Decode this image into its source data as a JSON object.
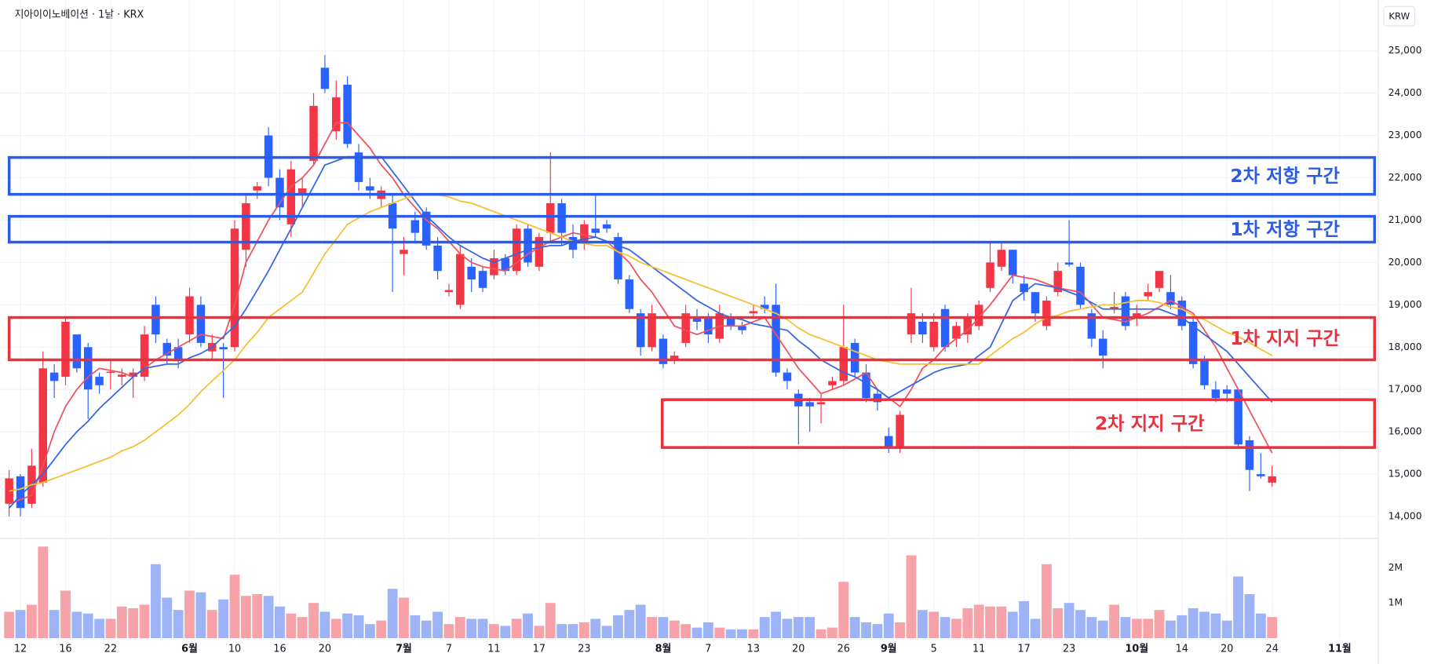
{
  "chart_data": {
    "type": "candlestick",
    "title": "지아이이노베이션 · 1날 · KRX",
    "currency_label": "KRW",
    "up_color": "#f23645",
    "down_color": "#2962ff",
    "grid": true,
    "categories": [
      null,
      "12",
      null,
      null,
      null,
      "16",
      null,
      null,
      null,
      "22",
      null,
      null,
      null,
      null,
      null,
      null,
      "6월",
      null,
      null,
      null,
      "10",
      null,
      null,
      null,
      "16",
      null,
      null,
      null,
      "20",
      null,
      null,
      null,
      null,
      null,
      null,
      "7월",
      null,
      null,
      null,
      "7",
      null,
      null,
      null,
      "11",
      null,
      null,
      null,
      "17",
      null,
      null,
      null,
      "23",
      null,
      null,
      null,
      null,
      null,
      null,
      "8월",
      null,
      null,
      null,
      "7",
      null,
      null,
      null,
      "13",
      null,
      null,
      null,
      "20",
      null,
      null,
      null,
      "26",
      null,
      null,
      null,
      "9월",
      null,
      null,
      null,
      "5",
      null,
      null,
      null,
      "11",
      null,
      null,
      null,
      "17",
      null,
      null,
      null,
      "23",
      null,
      null,
      null,
      null,
      null,
      "10월",
      null,
      null,
      null,
      "14",
      null,
      null,
      null,
      "20",
      null,
      null,
      null,
      "24",
      null,
      null,
      null,
      null,
      null,
      "11월"
    ],
    "open": [
      14300,
      14950,
      14300,
      14800,
      17400,
      17300,
      18300,
      18000,
      17300,
      17400,
      17300,
      17300,
      17300,
      19000,
      18100,
      18000,
      18300,
      19000,
      17900,
      18000,
      18000,
      20300,
      21700,
      23000,
      22000,
      20900,
      21600,
      22400,
      24600,
      23100,
      24200,
      22600,
      21800,
      21500,
      21400,
      20200,
      21000,
      21200,
      20400,
      19300,
      19000,
      19900,
      19800,
      19700,
      20100,
      19800,
      20800,
      19900,
      20700,
      21400,
      20600,
      20500,
      20800,
      20900,
      20600,
      19600,
      18800,
      18000,
      18200,
      17700,
      18100,
      18700,
      18700,
      18200,
      18700,
      18500,
      18800,
      19000,
      19000,
      17400,
      16900,
      16700,
      16650,
      17100,
      17200,
      18100,
      17400,
      16900,
      15900,
      15600,
      18300,
      18600,
      18000,
      18900,
      18200,
      18300,
      18500,
      19400,
      19900,
      20300,
      19500,
      19300,
      18500,
      19300,
      20000,
      19900,
      18800,
      18200,
      18900,
      19200,
      18700,
      19200,
      19400,
      19300,
      19100,
      18600,
      17700,
      17000,
      17000,
      17000,
      15800,
      15000,
      14800,
      null,
      null,
      null,
      null,
      null,
      null
    ],
    "high": [
      15100,
      15000,
      15600,
      17900,
      17600,
      18700,
      18300,
      18100,
      17400,
      17700,
      17500,
      17500,
      18500,
      19200,
      18200,
      18200,
      19400,
      19200,
      18300,
      18100,
      21000,
      21600,
      21900,
      23200,
      22200,
      22400,
      22000,
      24000,
      24900,
      24300,
      24400,
      22800,
      22000,
      21800,
      21600,
      20600,
      21200,
      21300,
      20600,
      19500,
      20400,
      20100,
      19900,
      20300,
      20200,
      20900,
      20900,
      20700,
      22600,
      21500,
      20900,
      21000,
      21600,
      21000,
      20700,
      19700,
      18900,
      19000,
      18300,
      17900,
      19000,
      18900,
      18800,
      19000,
      18800,
      18600,
      19000,
      19200,
      19500,
      17500,
      17000,
      16800,
      16900,
      17300,
      19000,
      18200,
      17600,
      17000,
      16100,
      16500,
      19400,
      18800,
      18800,
      19000,
      18600,
      18800,
      19100,
      20500,
      20500,
      20300,
      19700,
      19300,
      19200,
      20000,
      21000,
      20000,
      18900,
      18400,
      19300,
      19300,
      19000,
      19500,
      19800,
      19700,
      19200,
      18700,
      17800,
      17200,
      17100,
      17000,
      15900,
      15500,
      15200,
      null,
      null,
      null,
      null,
      null,
      null
    ],
    "low": [
      14000,
      14000,
      14200,
      14700,
      16800,
      17100,
      17400,
      16300,
      16900,
      17000,
      17100,
      16800,
      17200,
      18100,
      17600,
      17500,
      18100,
      18000,
      17700,
      16800,
      17900,
      19900,
      21500,
      21800,
      21000,
      20600,
      21300,
      22300,
      24000,
      22900,
      22700,
      21700,
      21500,
      21300,
      19300,
      19700,
      20500,
      20300,
      19600,
      19200,
      18900,
      19300,
      19300,
      19600,
      19700,
      19700,
      19900,
      19800,
      20500,
      20400,
      20100,
      20300,
      20600,
      20700,
      19500,
      18800,
      17800,
      17900,
      17500,
      17600,
      18000,
      18400,
      18100,
      18100,
      18400,
      18300,
      18700,
      18800,
      17300,
      17000,
      15700,
      16000,
      16200,
      17000,
      17100,
      17300,
      16700,
      16500,
      15500,
      15500,
      18100,
      18100,
      17900,
      17900,
      18000,
      18100,
      18400,
      19300,
      19800,
      19500,
      19100,
      18600,
      18400,
      19200,
      19900,
      18900,
      18000,
      17500,
      18800,
      18400,
      18500,
      19100,
      19300,
      18900,
      18400,
      17500,
      17000,
      16700,
      16700,
      15600,
      14600,
      14900,
      14700,
      null,
      null,
      null,
      null,
      null,
      null
    ],
    "close": [
      14900,
      14200,
      15200,
      17500,
      17200,
      18600,
      17500,
      17000,
      17100,
      17420,
      17350,
      17400,
      18300,
      18300,
      17800,
      17700,
      19200,
      18100,
      18100,
      17950,
      20800,
      21400,
      21800,
      22000,
      21300,
      22200,
      21750,
      23700,
      24100,
      23900,
      22800,
      21900,
      21700,
      21700,
      20800,
      20300,
      20700,
      20400,
      19800,
      19350,
      20200,
      19600,
      19400,
      20100,
      19800,
      20800,
      20000,
      20600,
      21400,
      20700,
      20300,
      20900,
      20700,
      20800,
      19600,
      18900,
      18000,
      18800,
      17600,
      17800,
      18800,
      18600,
      18300,
      18800,
      18500,
      18400,
      18850,
      18900,
      17400,
      17200,
      16600,
      16600,
      16700,
      17200,
      18000,
      17400,
      16800,
      16700,
      15600,
      16400,
      18800,
      18300,
      18600,
      18000,
      18500,
      18700,
      19000,
      20000,
      20300,
      19700,
      19300,
      18800,
      19100,
      19800,
      19950,
      19000,
      18200,
      17800,
      18950,
      18500,
      18800,
      19300,
      19800,
      19000,
      18500,
      17600,
      17100,
      16800,
      16900,
      15700,
      15100,
      14950,
      14950,
      null,
      null,
      null,
      null,
      null,
      null
    ],
    "ylim": [
      13500,
      26200
    ],
    "yticks": [
      {
        "value": 14000,
        "label": "14,000"
      },
      {
        "value": 15000,
        "label": "15,000"
      },
      {
        "value": 16000,
        "label": "16,000"
      },
      {
        "value": 17000,
        "label": "17,000"
      },
      {
        "value": 18000,
        "label": "18,000"
      },
      {
        "value": 19000,
        "label": "19,000"
      },
      {
        "value": 20000,
        "label": "20,000"
      },
      {
        "value": 21000,
        "label": "21,000"
      },
      {
        "value": 22000,
        "label": "22,000"
      },
      {
        "value": 23000,
        "label": "23,000"
      },
      {
        "value": 24000,
        "label": "24,000"
      },
      {
        "value": 25000,
        "label": "25,000"
      }
    ],
    "moving_averages": [
      {
        "color": "#f0505f",
        "values": [
          14300,
          14400,
          14500,
          15200,
          16000,
          16600,
          17000,
          17300,
          17500,
          17450,
          17400,
          17300,
          17500,
          17700,
          17850,
          18000,
          18150,
          18300,
          18250,
          18200,
          19000,
          20000,
          20500,
          21000,
          21400,
          21800,
          22000,
          22300,
          22800,
          23300,
          23300,
          23000,
          22700,
          22300,
          22000,
          21600,
          21300,
          21000,
          20800,
          20500,
          20200,
          20000,
          19900,
          19850,
          19800,
          20000,
          20200,
          20350,
          20500,
          20600,
          20700,
          20650,
          20600,
          20500,
          20250,
          20000,
          19600,
          19300,
          18900,
          18500,
          18400,
          18300,
          18400,
          18500,
          18500,
          18500,
          18600,
          18700,
          18300,
          17900,
          17500,
          17200,
          16900,
          17000,
          17100,
          17250,
          17400,
          17000,
          16800,
          16600,
          17000,
          17500,
          17700,
          18000,
          18200,
          18400,
          18700,
          19000,
          19350,
          19700,
          19650,
          19600,
          19500,
          19400,
          19350,
          19300,
          19000,
          18700,
          18650,
          18600,
          18700,
          18800,
          18950,
          19100,
          18950,
          18800,
          18400,
          18000,
          17500,
          17000,
          16500,
          16000,
          15500,
          null,
          null,
          null,
          null,
          null,
          null
        ]
      },
      {
        "color": "#3366e6",
        "values": [
          14200,
          14500,
          14750,
          15000,
          15350,
          15700,
          16000,
          16250,
          16550,
          16800,
          17050,
          17300,
          17500,
          17550,
          17600,
          17600,
          17750,
          17850,
          18000,
          18250,
          18500,
          18900,
          19350,
          19800,
          20300,
          20800,
          21300,
          21800,
          22300,
          22400,
          22500,
          22500,
          22500,
          22500,
          22150,
          21800,
          21450,
          21100,
          20850,
          20600,
          20400,
          20250,
          20100,
          20000,
          20100,
          20200,
          20300,
          20350,
          20400,
          20400,
          20500,
          20550,
          20600,
          20500,
          20400,
          20300,
          20100,
          19900,
          19700,
          19500,
          19300,
          19100,
          18950,
          18800,
          18700,
          18650,
          18550,
          18500,
          18450,
          18400,
          18150,
          17950,
          17700,
          17550,
          17400,
          17300,
          17150,
          17000,
          16800,
          16950,
          17100,
          17250,
          17400,
          17500,
          17550,
          17600,
          17800,
          18000,
          18550,
          19100,
          19300,
          19500,
          19450,
          19400,
          19300,
          19200,
          19050,
          18900,
          18900,
          18900,
          18900,
          18900,
          18900,
          18800,
          18700,
          18500,
          18300,
          18100,
          17900,
          17600,
          17300,
          17000,
          16700,
          null,
          null,
          null,
          null,
          null,
          null
        ]
      },
      {
        "color": "#f5c030",
        "values": [
          14600,
          14650,
          14750,
          14800,
          14900,
          15000,
          15100,
          15200,
          15300,
          15400,
          15550,
          15650,
          15800,
          16000,
          16200,
          16400,
          16650,
          16950,
          17200,
          17450,
          17700,
          18050,
          18350,
          18700,
          18900,
          19100,
          19300,
          19750,
          20200,
          20550,
          20900,
          21050,
          21200,
          21300,
          21400,
          21500,
          21600,
          21600,
          21600,
          21550,
          21450,
          21400,
          21300,
          21200,
          21100,
          21000,
          20900,
          20800,
          20700,
          20600,
          20500,
          20450,
          20400,
          20400,
          20250,
          20150,
          20000,
          19900,
          19800,
          19700,
          19600,
          19500,
          19400,
          19300,
          19200,
          19100,
          19000,
          18900,
          18800,
          18650,
          18450,
          18300,
          18200,
          18100,
          18000,
          17900,
          17800,
          17700,
          17650,
          17600,
          17600,
          17600,
          17600,
          17600,
          17600,
          17600,
          17600,
          17800,
          18000,
          18200,
          18350,
          18550,
          18700,
          18750,
          18850,
          18900,
          18950,
          19000,
          19000,
          19050,
          19100,
          19100,
          19050,
          18950,
          18900,
          18750,
          18650,
          18500,
          18350,
          18250,
          18100,
          17950,
          17800,
          null,
          null,
          null,
          null,
          null,
          null
        ]
      }
    ],
    "volume": {
      "up_color": "#f7a1a8",
      "down_color": "#9db3f5",
      "ylim": [
        0,
        2800000
      ],
      "yticks": [
        {
          "value": 1000000,
          "label": "1M"
        },
        {
          "value": 2000000,
          "label": "2M"
        }
      ],
      "values": [
        750000,
        800000,
        950000,
        2600000,
        800000,
        1350000,
        750000,
        700000,
        550000,
        550000,
        900000,
        850000,
        950000,
        2100000,
        1150000,
        800000,
        1350000,
        1300000,
        800000,
        1100000,
        1800000,
        1200000,
        1250000,
        1200000,
        900000,
        700000,
        600000,
        1000000,
        750000,
        550000,
        700000,
        650000,
        400000,
        500000,
        1400000,
        1150000,
        650000,
        500000,
        750000,
        400000,
        600000,
        550000,
        550000,
        400000,
        350000,
        550000,
        700000,
        350000,
        1000000,
        400000,
        400000,
        450000,
        550000,
        350000,
        650000,
        800000,
        950000,
        600000,
        600000,
        500000,
        400000,
        300000,
        450000,
        300000,
        250000,
        250000,
        250000,
        600000,
        750000,
        550000,
        600000,
        600000,
        250000,
        300000,
        1600000,
        600000,
        450000,
        400000,
        700000,
        450000,
        2350000,
        800000,
        750000,
        600000,
        550000,
        850000,
        950000,
        900000,
        900000,
        750000,
        1050000,
        550000,
        2100000,
        850000,
        1000000,
        800000,
        600000,
        500000,
        950000,
        600000,
        550000,
        550000,
        800000,
        500000,
        650000,
        850000,
        750000,
        700000,
        500000,
        1750000,
        1250000,
        700000,
        600000,
        null,
        null,
        null,
        null,
        null,
        null
      ]
    },
    "zones": [
      {
        "label": "2차 저항 구간",
        "low": 21610,
        "high": 22480,
        "color": "#2b5ce6",
        "start": 0
      },
      {
        "label": "1차 저항 구간",
        "low": 20480,
        "high": 21090,
        "color": "#2b5ce6",
        "start": 0
      },
      {
        "label": "1차 지지 구간",
        "low": 17700,
        "high": 18700,
        "color": "#e8323f",
        "start": 0
      },
      {
        "label": "2차 지지 구간",
        "low": 15630,
        "high": 16760,
        "color": "#e8323f",
        "start": 58
      }
    ]
  }
}
